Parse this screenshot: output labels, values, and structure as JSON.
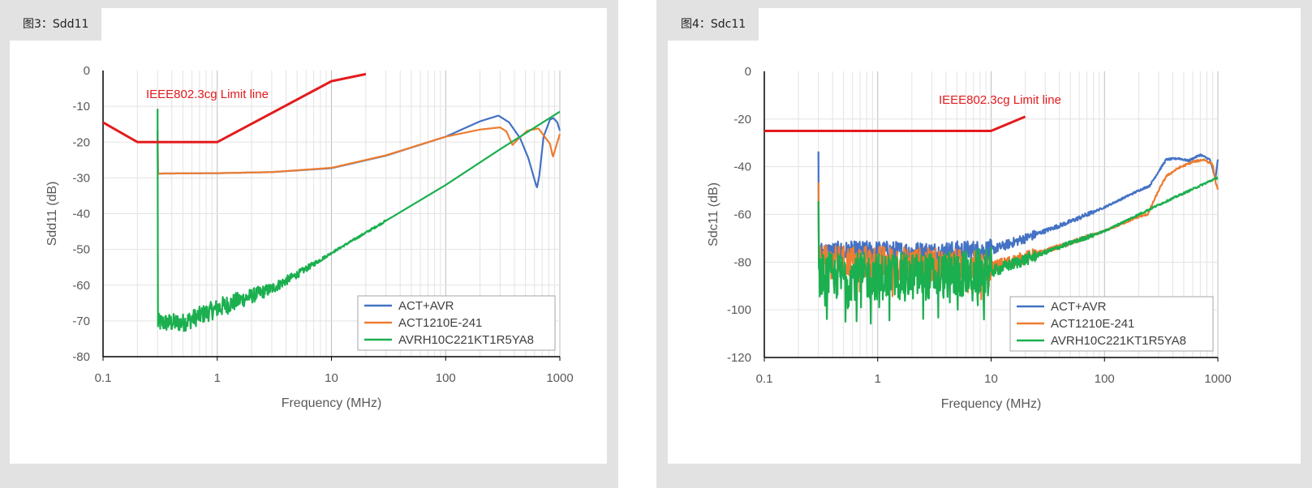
{
  "colors": {
    "act_avr": "#4472C4",
    "act1210": "#ED7D31",
    "avrh": "#1BAF4F",
    "limit": "#E31A1C"
  },
  "figures": [
    {
      "label": "图3：Sdd11"
    },
    {
      "label": "图4：Sdc11"
    }
  ],
  "chart_data": [
    {
      "type": "line",
      "title": "",
      "xlabel": "Frequency (MHz)",
      "ylabel": "Sdd11 (dB)",
      "xscale": "log",
      "xlim": [
        0.1,
        1000
      ],
      "ylim": [
        -80,
        0
      ],
      "xticks": [
        "0.1",
        "1",
        "10",
        "100",
        "1000"
      ],
      "yticks": [
        "0",
        "-10",
        "-20",
        "-30",
        "-40",
        "-50",
        "-60",
        "-70",
        "-80"
      ],
      "grid": true,
      "legend_position": "bottom-right",
      "annotation": "IEEE802.3cg Limit line",
      "limit_line": [
        [
          0.1,
          -14.5
        ],
        [
          0.2,
          -20
        ],
        [
          1,
          -20
        ],
        [
          10,
          -3
        ],
        [
          20,
          -1
        ]
      ],
      "series": [
        {
          "name": "ACT+AVR",
          "points": [
            [
              0.3,
              -28.8
            ],
            [
              1,
              -28.7
            ],
            [
              3,
              -28.4
            ],
            [
              10,
              -27.3
            ],
            [
              30,
              -23.8
            ],
            [
              100,
              -18.5
            ],
            [
              200,
              -14.2
            ],
            [
              290,
              -12.6
            ],
            [
              360,
              -14.5
            ],
            [
              450,
              -19
            ],
            [
              530,
              -24.5
            ],
            [
              600,
              -30.5
            ],
            [
              630,
              -32.8
            ],
            [
              660,
              -29.5
            ],
            [
              720,
              -18.5
            ],
            [
              820,
              -13.7
            ],
            [
              880,
              -13.3
            ],
            [
              950,
              -14.5
            ],
            [
              1000,
              -16.8
            ]
          ]
        },
        {
          "name": "ACT1210E-241",
          "points": [
            [
              0.3,
              -28.8
            ],
            [
              1,
              -28.7
            ],
            [
              3,
              -28.4
            ],
            [
              10,
              -27.2
            ],
            [
              30,
              -23.7
            ],
            [
              100,
              -18.5
            ],
            [
              200,
              -16.5
            ],
            [
              300,
              -15.9
            ],
            [
              340,
              -17
            ],
            [
              385,
              -20.8
            ],
            [
              430,
              -19.2
            ],
            [
              520,
              -16.8
            ],
            [
              650,
              -16.2
            ],
            [
              820,
              -20.5
            ],
            [
              870,
              -24.2
            ],
            [
              920,
              -21.5
            ],
            [
              1000,
              -17.8
            ]
          ]
        },
        {
          "name": "AVRH10C221KT1R5YA8",
          "points": [
            [
              0.3,
              -70.5
            ],
            [
              0.5,
              -70.5
            ],
            [
              1,
              -66.5
            ],
            [
              2,
              -63
            ],
            [
              3,
              -61
            ],
            [
              5,
              -57
            ],
            [
              10,
              -51
            ],
            [
              30,
              -42
            ],
            [
              100,
              -32
            ],
            [
              300,
              -22
            ],
            [
              1000,
              -11.5
            ]
          ]
        }
      ]
    },
    {
      "type": "line",
      "title": "",
      "xlabel": "Frequency (MHz)",
      "ylabel": "Sdc11 (dB)",
      "xscale": "log",
      "xlim": [
        0.1,
        1000
      ],
      "ylim": [
        -120,
        0
      ],
      "xticks": [
        "0.1",
        "1",
        "10",
        "100",
        "1000"
      ],
      "yticks": [
        "0",
        "-20",
        "-40",
        "-60",
        "-80",
        "-100",
        "-120"
      ],
      "grid": true,
      "legend_position": "bottom-right",
      "annotation": "IEEE802.3cg Limit line",
      "limit_line": [
        [
          0.1,
          -25
        ],
        [
          10,
          -25
        ],
        [
          20,
          -19
        ]
      ],
      "series": [
        {
          "name": "ACT+AVR",
          "points": [
            [
              0.3,
              -76
            ],
            [
              1,
              -75.5
            ],
            [
              3,
              -76
            ],
            [
              10,
              -75
            ],
            [
              20,
              -70
            ],
            [
              50,
              -63
            ],
            [
              100,
              -57
            ],
            [
              200,
              -50
            ],
            [
              250,
              -48
            ],
            [
              300,
              -42
            ],
            [
              350,
              -37
            ],
            [
              450,
              -36.5
            ],
            [
              550,
              -37.5
            ],
            [
              700,
              -35
            ],
            [
              850,
              -37
            ],
            [
              950,
              -45
            ],
            [
              1000,
              -37
            ]
          ]
        },
        {
          "name": "ACT1210E-241",
          "points": [
            [
              0.3,
              -80
            ],
            [
              1,
              -80
            ],
            [
              3,
              -81
            ],
            [
              10,
              -82
            ],
            [
              20,
              -78
            ],
            [
              50,
              -72
            ],
            [
              100,
              -67
            ],
            [
              200,
              -61
            ],
            [
              240,
              -60
            ],
            [
              300,
              -50
            ],
            [
              350,
              -44
            ],
            [
              450,
              -40.5
            ],
            [
              600,
              -38
            ],
            [
              750,
              -37
            ],
            [
              900,
              -39
            ],
            [
              950,
              -46
            ],
            [
              1000,
              -50
            ]
          ]
        },
        {
          "name": "AVRH10C221KT1R5YA8",
          "points": [
            [
              0.3,
              -86
            ],
            [
              1,
              -86
            ],
            [
              3,
              -86
            ],
            [
              10,
              -84
            ],
            [
              20,
              -79
            ],
            [
              50,
              -72
            ],
            [
              100,
              -67
            ],
            [
              300,
              -56
            ],
            [
              1000,
              -44.5
            ]
          ]
        }
      ]
    }
  ]
}
